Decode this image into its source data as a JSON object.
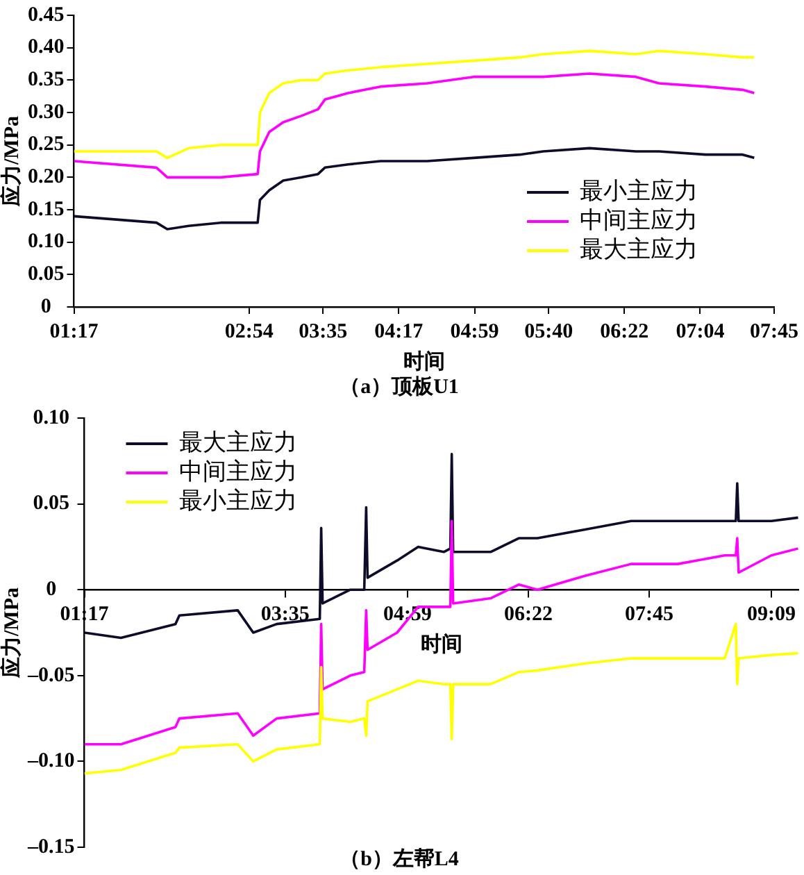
{
  "chart_data": [
    {
      "type": "line",
      "title": "（a）顶板U1",
      "xlabel": "时间",
      "ylabel": "应力/MPa",
      "legend": "bottom right",
      "grid": false,
      "marker": "none",
      "line_style": "solid",
      "x": [
        1.283,
        2.045,
        2.145,
        2.344,
        2.639,
        2.98,
        3.001,
        3.087,
        3.216,
        3.387,
        3.537,
        3.601,
        3.816,
        4.116,
        4.544,
        4.973,
        5.402,
        5.616,
        6.045,
        6.473,
        6.687,
        7.116,
        7.459,
        7.566
      ],
      "xlim": [
        1.283,
        7.75
      ],
      "xticks": [
        {
          "value": 1.283,
          "label": "01:17"
        },
        {
          "value": 2.9,
          "label": "02:54"
        },
        {
          "value": 3.583,
          "label": "03:35"
        },
        {
          "value": 4.283,
          "label": "04:17"
        },
        {
          "value": 4.983,
          "label": "04:59"
        },
        {
          "value": 5.667,
          "label": "05:40"
        },
        {
          "value": 6.367,
          "label": "06:22"
        },
        {
          "value": 7.067,
          "label": "07:04"
        },
        {
          "value": 7.75,
          "label": "07:45"
        }
      ],
      "ylim": [
        0,
        0.45
      ],
      "yticks": [
        0,
        {
          "value": 0.05,
          "label": "0.05"
        },
        {
          "value": 0.1,
          "label": "0.10"
        },
        {
          "value": 0.15,
          "label": "0.15"
        },
        {
          "value": 0.2,
          "label": "0.20"
        },
        {
          "value": 0.25,
          "label": "0.25"
        },
        {
          "value": 0.3,
          "label": "0.30"
        },
        {
          "value": 0.35,
          "label": "0.35"
        },
        {
          "value": 0.4,
          "label": "0.40"
        },
        {
          "value": 0.45,
          "label": "0.45"
        }
      ],
      "series": [
        {
          "name": "最小主应力",
          "color": "#0d0d2b",
          "values": [
            0.14,
            0.13,
            0.12,
            0.125,
            0.13,
            0.13,
            0.165,
            0.18,
            0.195,
            0.2,
            0.205,
            0.215,
            0.22,
            0.225,
            0.225,
            0.23,
            0.235,
            0.24,
            0.245,
            0.24,
            0.24,
            0.235,
            0.235,
            0.23
          ]
        },
        {
          "name": "中间主应力",
          "color": "#ff00ff",
          "values": [
            0.225,
            0.215,
            0.2,
            0.2,
            0.2,
            0.205,
            0.24,
            0.27,
            0.285,
            0.295,
            0.305,
            0.32,
            0.33,
            0.34,
            0.345,
            0.355,
            0.355,
            0.355,
            0.36,
            0.355,
            0.345,
            0.34,
            0.335,
            0.33
          ]
        },
        {
          "name": "最大主应力",
          "color": "#ffff00",
          "values": [
            0.24,
            0.24,
            0.23,
            0.245,
            0.25,
            0.25,
            0.3,
            0.33,
            0.345,
            0.35,
            0.35,
            0.36,
            0.365,
            0.37,
            0.375,
            0.38,
            0.385,
            0.39,
            0.395,
            0.39,
            0.395,
            0.39,
            0.385,
            0.385
          ]
        }
      ]
    },
    {
      "type": "line",
      "title": "（b）左帮L4",
      "xlabel": "时间",
      "ylabel": "应力/MPa",
      "legend": "top left",
      "grid": false,
      "marker": "none",
      "line_style": "solid",
      "x": [
        1.283,
        1.702,
        2.326,
        2.371,
        3.039,
        3.217,
        3.485,
        3.979,
        3.995,
        4.011,
        4.328,
        4.488,
        4.51,
        4.526,
        4.864,
        5.105,
        5.399,
        5.474,
        5.49,
        5.506,
        5.935,
        6.257,
        6.471,
        7.007,
        7.543,
        8.079,
        8.615,
        8.743,
        8.759,
        8.775,
        9.15,
        9.456
      ],
      "xlim": [
        1.283,
        9.46
      ],
      "xticks": [
        {
          "value": 1.283,
          "label": "01:17"
        },
        {
          "value": 3.583,
          "label": "03:35"
        },
        {
          "value": 4.983,
          "label": "04:59"
        },
        {
          "value": 6.367,
          "label": "06:22"
        },
        {
          "value": 7.75,
          "label": "07:45"
        },
        {
          "value": 9.15,
          "label": "09:09"
        }
      ],
      "ylim": [
        -0.15,
        0.1
      ],
      "yticks": [
        {
          "value": -0.15,
          "label": "–0.15"
        },
        {
          "value": -0.1,
          "label": "–0.10"
        },
        {
          "value": -0.05,
          "label": "–0.05"
        },
        0,
        {
          "value": 0.05,
          "label": "0.05"
        },
        {
          "value": 0.1,
          "label": "0.10"
        }
      ],
      "series": [
        {
          "name": "最大主应力",
          "color": "#0d0d2b",
          "values": [
            -0.025,
            -0.028,
            -0.02,
            -0.015,
            -0.012,
            -0.025,
            -0.02,
            -0.017,
            0.036,
            -0.008,
            0.0,
            0.0,
            0.048,
            0.007,
            0.017,
            0.025,
            0.022,
            0.024,
            0.079,
            0.022,
            0.022,
            0.03,
            0.03,
            0.035,
            0.04,
            0.04,
            0.04,
            0.04,
            0.062,
            0.04,
            0.04,
            0.042
          ]
        },
        {
          "name": "中间主应力",
          "color": "#ff00ff",
          "values": [
            -0.09,
            -0.09,
            -0.08,
            -0.075,
            -0.072,
            -0.085,
            -0.075,
            -0.072,
            -0.02,
            -0.058,
            -0.05,
            -0.048,
            -0.012,
            -0.035,
            -0.025,
            -0.01,
            -0.01,
            -0.01,
            0.04,
            -0.008,
            -0.005,
            0.003,
            0.0,
            0.008,
            0.015,
            0.015,
            0.02,
            0.02,
            0.03,
            0.01,
            0.02,
            0.024
          ]
        },
        {
          "name": "最小主应力",
          "color": "#ffff00",
          "values": [
            -0.107,
            -0.105,
            -0.095,
            -0.092,
            -0.09,
            -0.1,
            -0.093,
            -0.09,
            -0.045,
            -0.075,
            -0.077,
            -0.075,
            -0.085,
            -0.065,
            -0.058,
            -0.053,
            -0.055,
            -0.055,
            -0.087,
            -0.055,
            -0.055,
            -0.048,
            -0.047,
            -0.043,
            -0.04,
            -0.04,
            -0.04,
            -0.02,
            -0.055,
            -0.04,
            -0.038,
            -0.037
          ]
        }
      ]
    }
  ]
}
